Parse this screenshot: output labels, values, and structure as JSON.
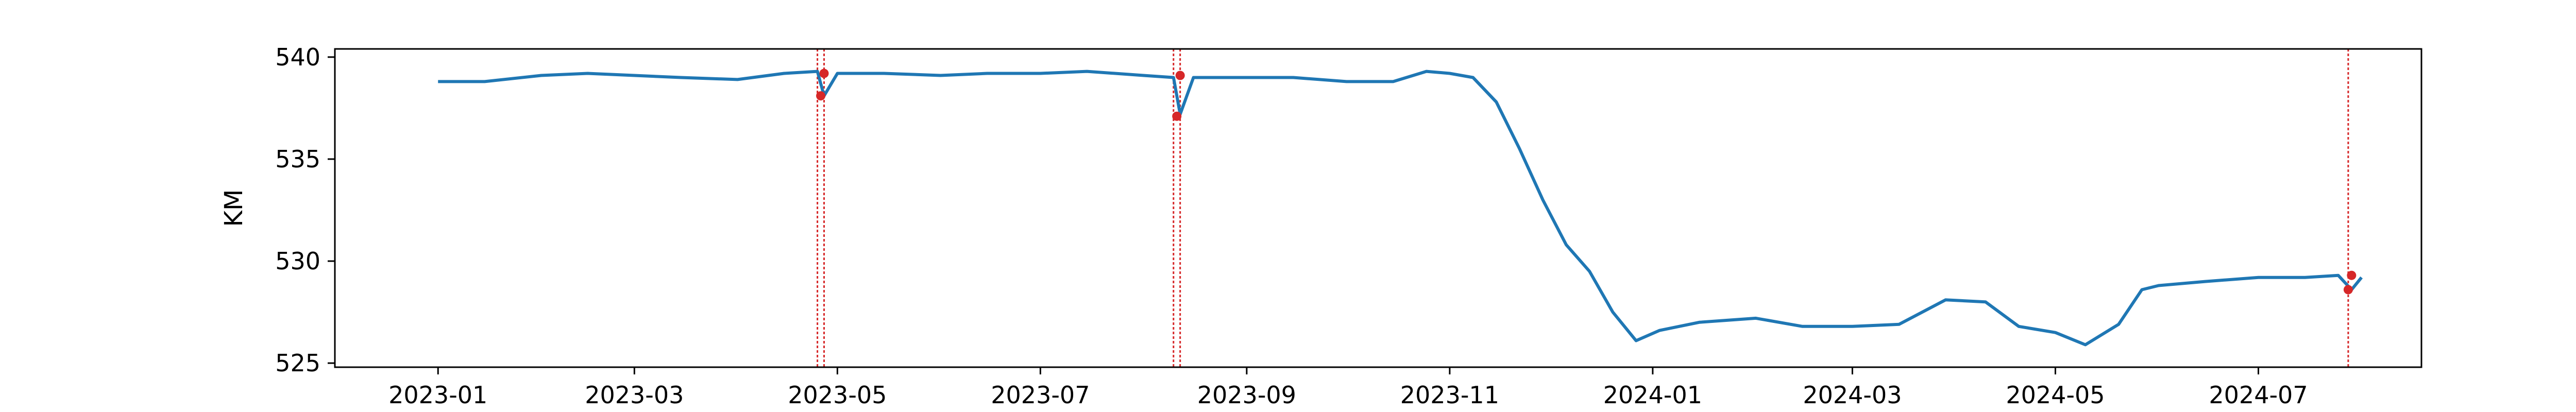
{
  "chart_data": {
    "type": "line",
    "title": "",
    "xlabel": "",
    "ylabel": "KM",
    "grid": false,
    "legend": "none",
    "xlim": [
      "2022-12-01",
      "2024-08-19"
    ],
    "ylim": [
      524.8,
      540.4
    ],
    "x_ticks": [
      "2023-01",
      "2023-03",
      "2023-05",
      "2023-07",
      "2023-09",
      "2023-11",
      "2024-01",
      "2024-03",
      "2024-05",
      "2024-07"
    ],
    "y_ticks": [
      525,
      530,
      535,
      540
    ],
    "colors": {
      "line": "#1f77b4",
      "anomaly": "#d62728"
    },
    "series": [
      {
        "x": [
          "2023-01-01",
          "2023-01-15",
          "2023-02-01",
          "2023-02-15",
          "2023-03-01",
          "2023-03-15",
          "2023-04-01",
          "2023-04-15",
          "2023-04-25",
          "2023-04-27",
          "2023-05-01",
          "2023-05-15",
          "2023-06-01",
          "2023-06-15",
          "2023-07-01",
          "2023-07-15",
          "2023-08-01",
          "2023-08-10",
          "2023-08-12",
          "2023-08-16",
          "2023-09-01",
          "2023-09-15",
          "2023-10-01",
          "2023-10-15",
          "2023-10-25",
          "2023-11-01",
          "2023-11-08",
          "2023-11-15",
          "2023-11-22",
          "2023-11-29",
          "2023-12-06",
          "2023-12-13",
          "2023-12-20",
          "2023-12-27",
          "2024-01-03",
          "2024-01-15",
          "2024-02-01",
          "2024-02-15",
          "2024-03-01",
          "2024-03-15",
          "2024-03-29",
          "2024-04-10",
          "2024-04-20",
          "2024-05-01",
          "2024-05-10",
          "2024-05-20",
          "2024-05-27",
          "2024-06-01",
          "2024-06-15",
          "2024-07-01",
          "2024-07-15",
          "2024-07-25",
          "2024-07-29",
          "2024-08-01"
        ],
        "values": [
          538.8,
          538.8,
          539.1,
          539.2,
          539.1,
          539.0,
          538.9,
          539.2,
          539.3,
          538.1,
          539.2,
          539.2,
          539.1,
          539.2,
          539.2,
          539.3,
          539.1,
          539.0,
          537.2,
          539.0,
          539.0,
          539.0,
          538.8,
          538.8,
          539.3,
          539.2,
          539.0,
          537.8,
          535.5,
          533.0,
          530.8,
          529.5,
          527.5,
          526.1,
          526.6,
          527.0,
          527.2,
          526.8,
          526.8,
          526.9,
          528.1,
          528.0,
          526.8,
          526.5,
          525.9,
          526.9,
          528.6,
          528.8,
          529.0,
          529.2,
          529.2,
          529.3,
          528.6,
          529.2
        ]
      }
    ],
    "anomalies": [
      {
        "x": "2023-04-26",
        "y": 538.1
      },
      {
        "x": "2023-04-27",
        "y": 539.2
      },
      {
        "x": "2023-08-11",
        "y": 537.1
      },
      {
        "x": "2023-08-12",
        "y": 539.1
      },
      {
        "x": "2024-07-28",
        "y": 528.6
      },
      {
        "x": "2024-07-29",
        "y": 529.3
      }
    ],
    "vlines": [
      "2023-04-25",
      "2023-04-27",
      "2023-08-10",
      "2023-08-12",
      "2024-07-28"
    ]
  }
}
